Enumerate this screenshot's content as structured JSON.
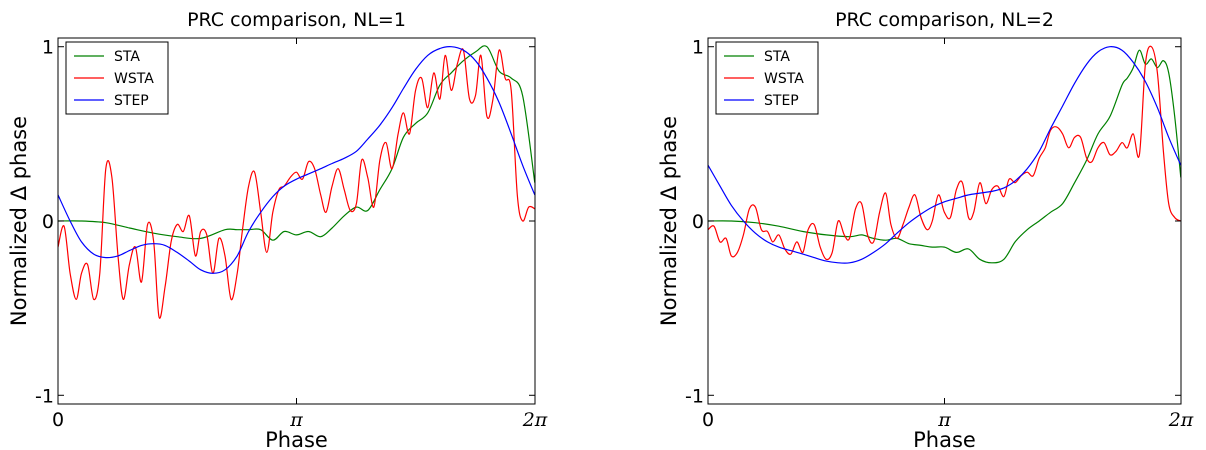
{
  "chart_data": [
    {
      "type": "line",
      "title": "PRC comparison, NL=1",
      "xlabel": "Phase",
      "ylabel": "Normalized Δ phase",
      "xlim": [
        0,
        6.2832
      ],
      "ylim": [
        -1.05,
        1.05
      ],
      "xticks": [
        {
          "value": 0,
          "label": "0"
        },
        {
          "value": 3.1416,
          "label": "π"
        },
        {
          "value": 6.2832,
          "label": "2π"
        }
      ],
      "yticks": [
        {
          "value": -1,
          "label": "-1"
        },
        {
          "value": 0,
          "label": "0"
        },
        {
          "value": 1,
          "label": "1"
        }
      ],
      "legend_position": "top-left",
      "series": [
        {
          "name": "STA",
          "color": "#008000",
          "x": [
            0,
            0.31,
            0.63,
            0.94,
            1.26,
            1.57,
            1.88,
            2.2,
            2.36,
            2.51,
            2.67,
            2.83,
            2.98,
            3.14,
            3.3,
            3.46,
            3.61,
            3.77,
            3.93,
            4.08,
            4.24,
            4.4,
            4.55,
            4.71,
            4.87,
            5.03,
            5.18,
            5.34,
            5.5,
            5.65,
            5.81,
            5.97,
            6.12,
            6.28
          ],
          "y": [
            0.0,
            0.0,
            -0.01,
            -0.04,
            -0.07,
            -0.09,
            -0.1,
            -0.05,
            -0.05,
            -0.05,
            -0.05,
            -0.11,
            -0.06,
            -0.08,
            -0.06,
            -0.09,
            -0.04,
            0.03,
            0.08,
            0.06,
            0.18,
            0.3,
            0.48,
            0.56,
            0.62,
            0.78,
            0.85,
            0.92,
            0.97,
            1.0,
            0.86,
            0.82,
            0.72,
            0.22
          ]
        },
        {
          "name": "WSTA",
          "color": "#ff0000",
          "x": [
            0,
            0.08,
            0.16,
            0.24,
            0.31,
            0.39,
            0.47,
            0.55,
            0.63,
            0.71,
            0.79,
            0.86,
            0.94,
            1.02,
            1.1,
            1.18,
            1.26,
            1.33,
            1.41,
            1.49,
            1.57,
            1.65,
            1.73,
            1.81,
            1.88,
            1.96,
            2.04,
            2.12,
            2.2,
            2.28,
            2.36,
            2.43,
            2.51,
            2.59,
            2.67,
            2.75,
            2.83,
            2.91,
            2.98,
            3.06,
            3.14,
            3.22,
            3.3,
            3.38,
            3.46,
            3.53,
            3.61,
            3.69,
            3.77,
            3.85,
            3.93,
            4.0,
            4.08,
            4.16,
            4.24,
            4.32,
            4.4,
            4.48,
            4.55,
            4.63,
            4.71,
            4.79,
            4.87,
            4.95,
            5.03,
            5.1,
            5.18,
            5.26,
            5.34,
            5.42,
            5.5,
            5.57,
            5.65,
            5.73,
            5.81,
            5.89,
            5.97,
            6.05,
            6.12,
            6.2,
            6.28
          ],
          "y": [
            -0.15,
            -0.03,
            -0.3,
            -0.45,
            -0.3,
            -0.25,
            -0.45,
            -0.3,
            0.3,
            0.25,
            -0.2,
            -0.45,
            -0.25,
            -0.15,
            -0.35,
            -0.02,
            -0.12,
            -0.55,
            -0.38,
            -0.12,
            -0.02,
            -0.06,
            0.03,
            -0.2,
            -0.06,
            -0.08,
            -0.3,
            -0.1,
            -0.2,
            -0.45,
            -0.3,
            -0.05,
            0.2,
            0.28,
            0.05,
            -0.18,
            0.05,
            0.18,
            0.2,
            0.25,
            0.28,
            0.24,
            0.34,
            0.3,
            0.15,
            0.05,
            0.2,
            0.3,
            0.18,
            0.06,
            0.1,
            0.35,
            0.25,
            0.08,
            0.35,
            0.45,
            0.3,
            0.5,
            0.62,
            0.5,
            0.75,
            0.82,
            0.65,
            0.85,
            0.7,
            0.95,
            0.75,
            0.9,
            0.98,
            0.7,
            0.72,
            0.95,
            0.6,
            0.7,
            0.98,
            0.82,
            0.75,
            0.15,
            0.0,
            0.08,
            0.07
          ]
        },
        {
          "name": "STEP",
          "color": "#0000ff",
          "x": [
            0,
            0.16,
            0.31,
            0.47,
            0.63,
            0.79,
            0.94,
            1.1,
            1.26,
            1.41,
            1.57,
            1.73,
            1.88,
            2.04,
            2.2,
            2.36,
            2.51,
            2.67,
            2.83,
            2.98,
            3.14,
            3.3,
            3.46,
            3.61,
            3.77,
            3.93,
            4.08,
            4.24,
            4.4,
            4.55,
            4.71,
            4.87,
            5.03,
            5.18,
            5.34,
            5.5,
            5.65,
            5.81,
            5.97,
            6.12,
            6.28
          ],
          "y": [
            0.15,
            0.0,
            -0.12,
            -0.19,
            -0.21,
            -0.2,
            -0.17,
            -0.14,
            -0.13,
            -0.14,
            -0.18,
            -0.23,
            -0.28,
            -0.3,
            -0.28,
            -0.2,
            -0.06,
            0.05,
            0.14,
            0.2,
            0.24,
            0.27,
            0.3,
            0.33,
            0.36,
            0.4,
            0.47,
            0.55,
            0.65,
            0.76,
            0.87,
            0.95,
            0.99,
            1.0,
            0.98,
            0.92,
            0.82,
            0.68,
            0.5,
            0.32,
            0.15
          ]
        }
      ]
    },
    {
      "type": "line",
      "title": "PRC comparison, NL=2",
      "xlabel": "Phase",
      "ylabel": "Normalized Δ phase",
      "xlim": [
        0,
        6.2832
      ],
      "ylim": [
        -1.05,
        1.05
      ],
      "xticks": [
        {
          "value": 0,
          "label": "0"
        },
        {
          "value": 3.1416,
          "label": "π"
        },
        {
          "value": 6.2832,
          "label": "2π"
        }
      ],
      "yticks": [
        {
          "value": -1,
          "label": "-1"
        },
        {
          "value": 0,
          "label": "0"
        },
        {
          "value": 1,
          "label": "1"
        }
      ],
      "legend_position": "top-left",
      "series": [
        {
          "name": "STA",
          "color": "#008000",
          "x": [
            0,
            0.31,
            0.63,
            0.94,
            1.26,
            1.57,
            1.88,
            2.04,
            2.2,
            2.36,
            2.51,
            2.67,
            2.83,
            2.98,
            3.14,
            3.3,
            3.46,
            3.61,
            3.77,
            3.93,
            4.08,
            4.24,
            4.4,
            4.55,
            4.71,
            4.87,
            5.03,
            5.18,
            5.34,
            5.5,
            5.57,
            5.65,
            5.73,
            5.81,
            5.89,
            5.97,
            6.05,
            6.12,
            6.2,
            6.28
          ],
          "y": [
            0.0,
            0.0,
            -0.01,
            -0.03,
            -0.06,
            -0.08,
            -0.09,
            -0.08,
            -0.1,
            -0.11,
            -0.1,
            -0.13,
            -0.14,
            -0.15,
            -0.15,
            -0.18,
            -0.16,
            -0.22,
            -0.24,
            -0.22,
            -0.12,
            -0.05,
            0.0,
            0.05,
            0.1,
            0.22,
            0.35,
            0.5,
            0.6,
            0.78,
            0.82,
            0.88,
            0.98,
            0.9,
            0.93,
            0.88,
            0.92,
            0.85,
            0.6,
            0.25
          ]
        },
        {
          "name": "WSTA",
          "color": "#ff0000",
          "x": [
            0,
            0.08,
            0.16,
            0.24,
            0.31,
            0.39,
            0.47,
            0.55,
            0.63,
            0.71,
            0.79,
            0.86,
            0.94,
            1.02,
            1.1,
            1.18,
            1.26,
            1.33,
            1.41,
            1.49,
            1.57,
            1.65,
            1.73,
            1.81,
            1.88,
            1.96,
            2.04,
            2.12,
            2.2,
            2.28,
            2.36,
            2.43,
            2.51,
            2.59,
            2.67,
            2.75,
            2.83,
            2.91,
            2.98,
            3.06,
            3.14,
            3.22,
            3.3,
            3.38,
            3.46,
            3.53,
            3.61,
            3.69,
            3.77,
            3.85,
            3.93,
            4.0,
            4.08,
            4.16,
            4.24,
            4.32,
            4.4,
            4.48,
            4.55,
            4.63,
            4.71,
            4.79,
            4.87,
            4.95,
            5.03,
            5.1,
            5.18,
            5.26,
            5.34,
            5.42,
            5.5,
            5.57,
            5.65,
            5.73,
            5.81,
            5.89,
            5.97,
            6.05,
            6.12,
            6.2,
            6.28
          ],
          "y": [
            -0.05,
            -0.03,
            -0.12,
            -0.1,
            -0.2,
            -0.18,
            -0.08,
            0.07,
            0.08,
            -0.05,
            -0.06,
            -0.12,
            -0.08,
            -0.16,
            -0.19,
            -0.12,
            -0.18,
            -0.05,
            -0.02,
            -0.15,
            -0.22,
            -0.18,
            0.0,
            -0.08,
            -0.1,
            0.07,
            0.1,
            -0.08,
            -0.12,
            0.05,
            0.16,
            -0.02,
            -0.1,
            -0.02,
            0.08,
            0.15,
            0.02,
            -0.05,
            0.0,
            0.15,
            0.05,
            0.02,
            0.18,
            0.22,
            0.02,
            0.05,
            0.22,
            0.1,
            0.18,
            0.2,
            0.14,
            0.24,
            0.22,
            0.26,
            0.28,
            0.26,
            0.36,
            0.42,
            0.52,
            0.54,
            0.5,
            0.42,
            0.48,
            0.48,
            0.36,
            0.34,
            0.42,
            0.45,
            0.38,
            0.4,
            0.45,
            0.42,
            0.5,
            0.38,
            0.9,
            1.0,
            0.85,
            0.4,
            0.1,
            0.02,
            0.0
          ]
        },
        {
          "name": "STEP",
          "color": "#0000ff",
          "x": [
            0,
            0.16,
            0.31,
            0.47,
            0.63,
            0.79,
            0.94,
            1.1,
            1.26,
            1.41,
            1.57,
            1.73,
            1.88,
            2.04,
            2.2,
            2.36,
            2.51,
            2.67,
            2.83,
            2.98,
            3.14,
            3.3,
            3.46,
            3.61,
            3.77,
            3.93,
            4.08,
            4.24,
            4.4,
            4.55,
            4.71,
            4.87,
            5.03,
            5.18,
            5.34,
            5.5,
            5.65,
            5.81,
            5.97,
            6.12,
            6.28
          ],
          "y": [
            0.32,
            0.2,
            0.09,
            0.0,
            -0.07,
            -0.12,
            -0.15,
            -0.17,
            -0.19,
            -0.21,
            -0.23,
            -0.24,
            -0.24,
            -0.22,
            -0.18,
            -0.13,
            -0.07,
            -0.01,
            0.04,
            0.08,
            0.11,
            0.13,
            0.15,
            0.16,
            0.17,
            0.19,
            0.23,
            0.3,
            0.4,
            0.53,
            0.66,
            0.79,
            0.9,
            0.97,
            1.0,
            0.98,
            0.91,
            0.8,
            0.65,
            0.48,
            0.32
          ]
        }
      ]
    }
  ]
}
